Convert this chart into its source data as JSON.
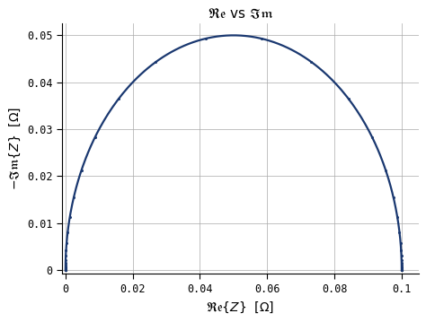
{
  "title": "$\\mathfrak{Re}$ vs $\\mathfrak{Im}$",
  "xlabel": "$\\mathfrak{Re}\\{Z\\}$  $[\\Omega]$",
  "ylabel": "$-\\mathfrak{Im}\\{Z\\}$  $[\\Omega]$",
  "R": 0.1,
  "xlim": [
    -0.001,
    0.105
  ],
  "ylim": [
    -0.0008,
    0.0525
  ],
  "xticks": [
    0,
    0.02,
    0.04,
    0.06,
    0.08,
    0.1
  ],
  "yticks": [
    0,
    0.01,
    0.02,
    0.03,
    0.04,
    0.05
  ],
  "line_color": "#1a3870",
  "marker_color": "#1a3870",
  "marker_size": 2.2,
  "linewidth": 1.6,
  "background_color": "#ffffff",
  "grid_color": "#aaaaaa",
  "n_line": 800,
  "n_markers": 70,
  "omega_low": -5,
  "omega_high": 5
}
